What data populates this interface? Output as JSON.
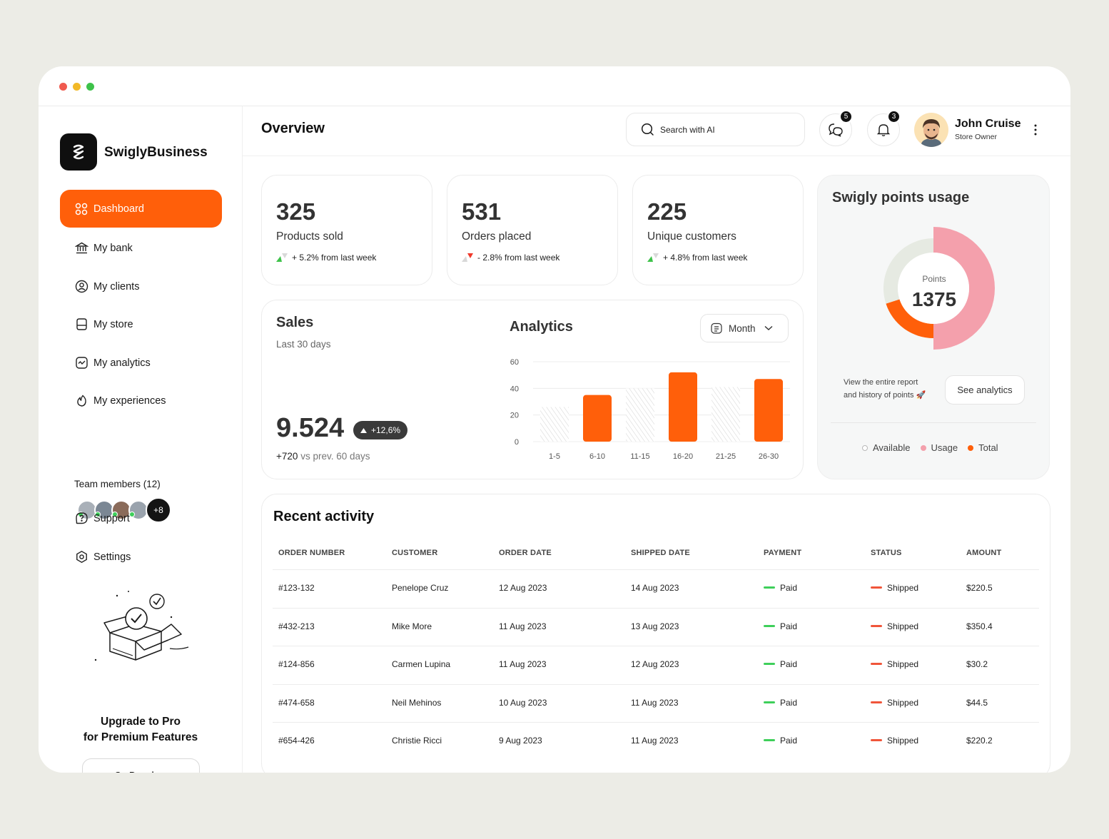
{
  "colors": {
    "accent": "#ff5f0a",
    "pink": "#f4a0ac",
    "available": "#e6eae2",
    "paid": "#3ecf5a",
    "shipped": "#f0553a"
  },
  "brand": {
    "name": "SwiglyBusiness"
  },
  "sidebar": {
    "items": [
      {
        "label": "Dashboard",
        "icon": "grid-icon"
      },
      {
        "label": "My bank",
        "icon": "bank-icon"
      },
      {
        "label": "My clients",
        "icon": "user-circle-icon"
      },
      {
        "label": "My store",
        "icon": "store-icon"
      },
      {
        "label": "My analytics",
        "icon": "analytics-icon"
      },
      {
        "label": "My experiences",
        "icon": "flame-icon"
      },
      {
        "label": "Support",
        "icon": "help-icon"
      },
      {
        "label": "Settings",
        "icon": "settings-icon"
      }
    ],
    "team_label": "Team members (12)",
    "team_more": "+8",
    "upgrade_line1": "Upgrade to Pro",
    "upgrade_line2": "for Premium Features",
    "go_premium": "Go Premium"
  },
  "header": {
    "title": "Overview",
    "search_placeholder": "Search with AI",
    "messages_count": "5",
    "notifications_count": "3",
    "user_name": "John Cruise",
    "user_role": "Store Owner"
  },
  "stats": [
    {
      "value": "325",
      "label": "Products sold",
      "trend": "+ 5.2% from last week",
      "direction": "up"
    },
    {
      "value": "531",
      "label": "Orders placed",
      "trend": "- 2.8% from last week",
      "direction": "down"
    },
    {
      "value": "225",
      "label": "Unique customers",
      "trend": "+ 4.8% from last week",
      "direction": "up"
    }
  ],
  "sales": {
    "title": "Sales",
    "subtitle": "Last 30 days",
    "value": "9.524",
    "badge": "+12,6%",
    "prev_value": "+720",
    "prev_text": "vs prev. 60 days"
  },
  "analytics": {
    "title": "Analytics",
    "period": "Month"
  },
  "chart_data": {
    "type": "bar",
    "categories": [
      "1-5",
      "6-10",
      "11-15",
      "16-20",
      "21-25",
      "26-30"
    ],
    "values": [
      26,
      35,
      40,
      52,
      41,
      47
    ],
    "highlighted": [
      false,
      true,
      false,
      true,
      false,
      true
    ],
    "ylim": [
      0,
      60
    ],
    "yticks": [
      0,
      20,
      40,
      60
    ],
    "grid": true
  },
  "points": {
    "title": "Swigly points usage",
    "center_label": "Points",
    "center_value": "1375",
    "usage_fraction": 0.5,
    "total_fraction": 0.2,
    "available_fraction": 0.3,
    "report_text_1": "View the entire report",
    "report_text_2": "and history of points 🚀",
    "see_button": "See analytics",
    "legend": [
      "Available",
      "Usage",
      "Total"
    ]
  },
  "recent": {
    "title": "Recent activity",
    "headers": [
      "ORDER NUMBER",
      "CUSTOMER",
      "ORDER DATE",
      "SHIPPED DATE",
      "PAYMENT",
      "STATUS",
      "AMOUNT"
    ],
    "rows": [
      [
        "#123-132",
        "Penelope Cruz",
        "12 Aug 2023",
        "14 Aug 2023",
        "Paid",
        "Shipped",
        "$220.5"
      ],
      [
        "#432-213",
        "Mike More",
        "11 Aug 2023",
        "13 Aug 2023",
        "Paid",
        "Shipped",
        "$350.4"
      ],
      [
        "#124-856",
        "Carmen Lupina",
        "11 Aug 2023",
        "12 Aug 2023",
        "Paid",
        "Shipped",
        "$30.2"
      ],
      [
        "#474-658",
        "Neil Mehinos",
        "10 Aug 2023",
        "11 Aug 2023",
        "Paid",
        "Shipped",
        "$44.5"
      ],
      [
        "#654-426",
        "Christie Ricci",
        "9 Aug 2023",
        "11 Aug 2023",
        "Paid",
        "Shipped",
        "$220.2"
      ]
    ]
  }
}
